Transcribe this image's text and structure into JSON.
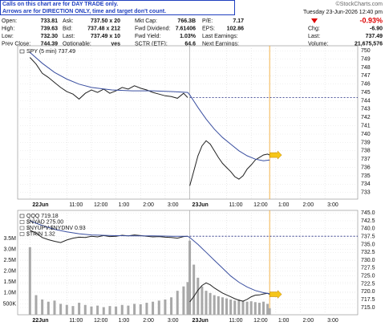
{
  "header": {
    "notice": [
      "Calls on this chart are for DAY TRADE only.",
      "Arrows are for DIRECTION ONLY, time and target don't count."
    ],
    "copyright": "©StockCharts.com",
    "date": "Tuesday 23-Jun-2026 12:40 pm",
    "quote": [
      [
        {
          "label": "Open:",
          "value": "733.81"
        },
        {
          "label": "Ask:",
          "value": "737.50 x 20"
        },
        {
          "label": "Mkt Cap:",
          "value": "766.3B"
        },
        {
          "label": "P/E:",
          "value": "7.17"
        },
        {
          "value": "-0.93%"
        }
      ],
      [
        {
          "label": "High:",
          "value": "739.63"
        },
        {
          "label": "Bid:",
          "value": "737.48 x 212"
        },
        {
          "label": "Fwd Dividend:",
          "value": "7.61406"
        },
        {
          "label": "EPS:",
          "value": "102.86"
        },
        {
          "label": "Chg:",
          "value": "-6.90"
        }
      ],
      [
        {
          "label": "Low:",
          "value": "732.30"
        },
        {
          "label": "Last:",
          "value": "737.49 x 10"
        },
        {
          "label": "Fwd Yield:",
          "value": "1.03%"
        },
        {
          "label": "Last Earnings:"
        },
        {
          "label": "Last:",
          "value": "737.49"
        }
      ],
      [
        {
          "label": "Prev Close:",
          "value": "744.39"
        },
        {
          "label": "Optionable:",
          "value": "yes"
        },
        {
          "label": "SCTR (ETF):",
          "value": "64.6"
        },
        {
          "label": "Next Earnings:"
        },
        {
          "label": "Volume:",
          "value": "21,675,576"
        }
      ]
    ]
  },
  "chart_data": [
    {
      "type": "line",
      "y_side": "right",
      "grid": true,
      "xlim": [
        -6,
        160
      ],
      "ylim": [
        732.2,
        750.6
      ],
      "yticks": [
        733,
        734,
        735,
        736,
        737,
        738,
        739,
        740,
        741,
        742,
        743,
        744,
        745,
        746,
        747,
        748,
        749,
        750
      ],
      "xticks": [
        {
          "value": 0,
          "label": "22Jun"
        },
        {
          "value": 18,
          "label": "11:00"
        },
        {
          "value": 30,
          "label": "12:00"
        },
        {
          "value": 42,
          "label": "1:00"
        },
        {
          "value": 54,
          "label": "2:00"
        },
        {
          "value": 66,
          "label": "3:00"
        },
        {
          "value": 78,
          "label": "23Jun"
        },
        {
          "value": 96,
          "label": "11:00"
        },
        {
          "value": 108,
          "label": "12:00"
        },
        {
          "value": 120,
          "label": "1:00"
        },
        {
          "value": 132,
          "label": "2:00"
        },
        {
          "value": 144,
          "label": "3:00"
        }
      ],
      "hline": 744.39,
      "vline": 117,
      "series": [
        {
          "name": "SPY (5 min) 737.49",
          "color": "#222222",
          "x": [
            0,
            3,
            6,
            9,
            12,
            15,
            18,
            21,
            24,
            27,
            30,
            33,
            36,
            39,
            42,
            45,
            48,
            51,
            54,
            57,
            60,
            63,
            66,
            69,
            72,
            75,
            77,
            77.5,
            78,
            80,
            82,
            84,
            86,
            88,
            90,
            92,
            94,
            96,
            98,
            100,
            102,
            104,
            106,
            108,
            110,
            112,
            114,
            116,
            117
          ],
          "values": [
            749.2,
            748.4,
            747.3,
            746.8,
            746.2,
            745.6,
            745.1,
            744.8,
            744.2,
            744.9,
            745.3,
            745.0,
            745.4,
            744.9,
            745.2,
            745.6,
            745.4,
            745.8,
            745.5,
            745.3,
            745.0,
            744.8,
            744.6,
            744.5,
            744.3,
            744.9,
            744.39,
            null,
            733.8,
            735.6,
            737.4,
            738.6,
            739.2,
            738.8,
            738.0,
            737.2,
            736.5,
            736.0,
            735.5,
            734.9,
            734.6,
            735.0,
            735.8,
            736.3,
            736.9,
            737.2,
            737.5,
            737.6,
            737.49
          ]
        },
        {
          "color": "#3a4fa0",
          "x": [
            0,
            6,
            12,
            18,
            24,
            30,
            40,
            50,
            60,
            70,
            77,
            78,
            82,
            86,
            90,
            94,
            98,
            102,
            106,
            110,
            114,
            117
          ],
          "values": [
            749.8,
            748.5,
            747.4,
            746.6,
            746.0,
            745.6,
            745.3,
            745.2,
            745.2,
            745.1,
            745.0,
            744.7,
            743.2,
            741.8,
            740.6,
            739.6,
            738.8,
            738.0,
            737.4,
            737.0,
            736.8,
            736.9
          ]
        }
      ]
    },
    {
      "type": "line",
      "y_side": "left",
      "grid": true,
      "xlim": [
        -6,
        160
      ],
      "ylim": [
        0,
        4790000
      ],
      "y2lim": [
        712.7,
        745.8
      ],
      "yticks": [
        {
          "value": 500000,
          "label": "500K"
        },
        {
          "value": 1000000,
          "label": "1.0M"
        },
        {
          "value": 1500000,
          "label": "1.5M"
        },
        {
          "value": 2000000,
          "label": "2.0M"
        },
        {
          "value": 2500000,
          "label": "2.5M"
        },
        {
          "value": 3000000,
          "label": "3.0M"
        },
        {
          "value": 3500000,
          "label": "3.5M"
        }
      ],
      "y2ticks": [
        {
          "value": 715,
          "label": "715.0"
        },
        717.5,
        {
          "value": 720,
          "label": "720.0"
        },
        722.5,
        {
          "value": 725,
          "label": "725.0"
        },
        727.5,
        {
          "value": 730,
          "label": "730.0"
        },
        732.5,
        {
          "value": 735,
          "label": "735.0"
        },
        737.5,
        {
          "value": 740,
          "label": "740.0"
        },
        742.5,
        {
          "value": 745,
          "label": "745.0"
        }
      ],
      "xticks": [
        {
          "value": 0,
          "label": "22Jun"
        },
        {
          "value": 18,
          "label": "11:00"
        },
        {
          "value": 30,
          "label": "12:00"
        },
        {
          "value": 42,
          "label": "1:00"
        },
        {
          "value": 54,
          "label": "2:00"
        },
        {
          "value": 66,
          "label": "3:00"
        },
        {
          "value": 78,
          "label": "23Jun"
        },
        {
          "value": 96,
          "label": "11:00"
        },
        {
          "value": 108,
          "label": "12:00"
        },
        {
          "value": 120,
          "label": "1:00"
        },
        {
          "value": 132,
          "label": "2:00"
        },
        {
          "value": 144,
          "label": "3:00"
        }
      ],
      "hline": 737.6,
      "hline_axis": "y2",
      "vline": 117,
      "annotations": [
        "$NYAD 275.00",
        "$NYUPV:$NYDNV 0.93",
        "$TRIN 1.32"
      ],
      "series": [
        {
          "type": "bar",
          "color": "#a8a8a8",
          "x": [
            0,
            3,
            6,
            9,
            12,
            15,
            18,
            21,
            24,
            27,
            30,
            33,
            36,
            39,
            42,
            45,
            48,
            51,
            54,
            57,
            60,
            63,
            66,
            69,
            72,
            75,
            77,
            78,
            80,
            82,
            84,
            86,
            88,
            90,
            92,
            94,
            96,
            98,
            100,
            102,
            104,
            106,
            108,
            110,
            112,
            114,
            116,
            117
          ],
          "values": [
            3100000,
            900000,
            700000,
            600000,
            650000,
            500000,
            450000,
            400000,
            550000,
            450000,
            380000,
            420000,
            350000,
            400000,
            380000,
            450000,
            420000,
            500000,
            480000,
            550000,
            600000,
            650000,
            700000,
            800000,
            1100000,
            1300000,
            1500000,
            3400000,
            2300000,
            1700000,
            1300000,
            1100000,
            1000000,
            900000,
            850000,
            800000,
            750000,
            700000,
            650000,
            700000,
            650000,
            600000,
            620000,
            580000,
            550000,
            600000,
            500000,
            300000
          ]
        },
        {
          "name": "QQQ 719.18",
          "axis": "y2",
          "color": "#222222",
          "x": [
            0,
            3,
            6,
            9,
            12,
            15,
            18,
            21,
            24,
            27,
            30,
            33,
            36,
            39,
            42,
            45,
            48,
            51,
            54,
            57,
            60,
            63,
            66,
            69,
            72,
            75,
            77,
            77.5,
            78,
            80,
            82,
            84,
            86,
            88,
            90,
            92,
            94,
            96,
            98,
            100,
            102,
            104,
            106,
            108,
            110,
            112,
            114,
            116,
            117
          ],
          "values": [
            739.5,
            738.6,
            737.2,
            736.5,
            736.0,
            735.6,
            736.4,
            737.0,
            737.3,
            737.2,
            737.6,
            737.4,
            737.8,
            737.5,
            737.6,
            737.9,
            737.7,
            738.0,
            737.8,
            737.6,
            737.4,
            737.5,
            737.3,
            737.2,
            737.0,
            737.5,
            737.6,
            null,
            716.8,
            718.5,
            720.5,
            722.0,
            722.8,
            722.2,
            721.2,
            720.4,
            719.6,
            719.0,
            718.4,
            717.8,
            717.3,
            717.0,
            717.6,
            718.4,
            718.9,
            719.0,
            719.3,
            719.5,
            719.18
          ]
        },
        {
          "axis": "y2",
          "color": "#3a4fa0",
          "x": [
            0,
            6,
            12,
            18,
            24,
            30,
            40,
            50,
            60,
            70,
            77,
            78,
            82,
            86,
            90,
            94,
            98,
            102,
            106,
            110,
            114,
            117
          ],
          "values": [
            742.5,
            741.0,
            739.8,
            739.0,
            738.4,
            738.0,
            737.8,
            737.7,
            737.7,
            737.6,
            737.6,
            737.2,
            735.0,
            732.5,
            730.0,
            727.5,
            725.0,
            723.0,
            721.5,
            720.4,
            719.7,
            719.4
          ]
        }
      ]
    }
  ]
}
